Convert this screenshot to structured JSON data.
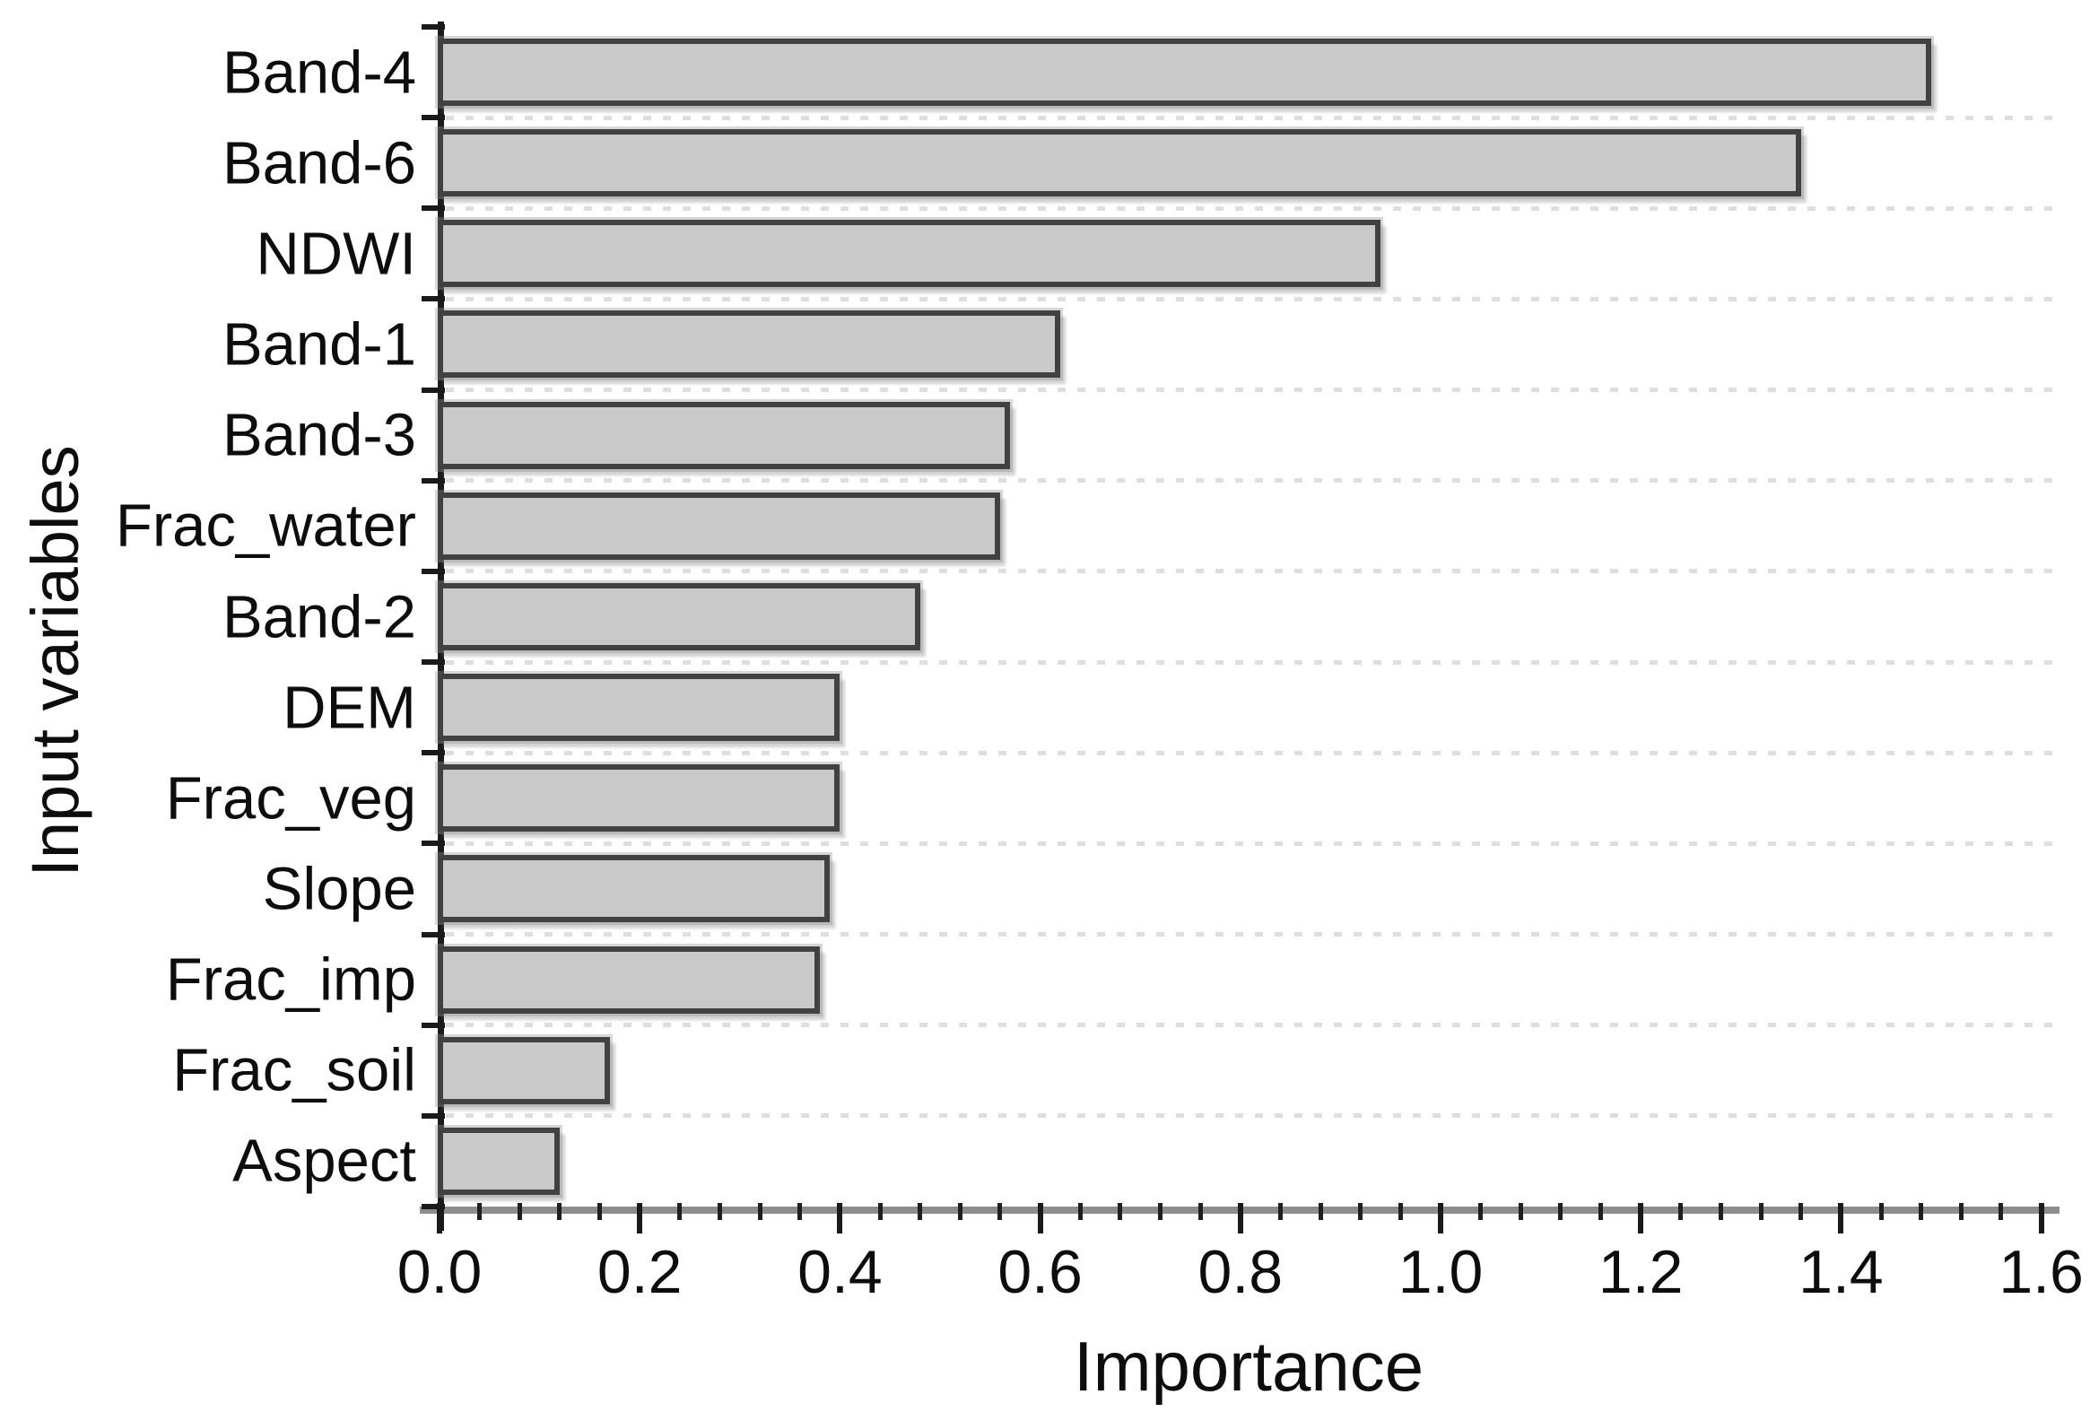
{
  "chart_data": {
    "type": "bar",
    "orientation": "horizontal",
    "title": "",
    "xlabel": "Importance",
    "ylabel": "Input variables",
    "categories": [
      "Band-4",
      "Band-6",
      "NDWI",
      "Band-1",
      "Band-3",
      "Frac_water",
      "Band-2",
      "DEM",
      "Frac_veg",
      "Slope",
      "Frac_imp",
      "Frac_soil",
      "Aspect"
    ],
    "values": [
      1.49,
      1.36,
      0.94,
      0.62,
      0.57,
      0.56,
      0.48,
      0.4,
      0.4,
      0.39,
      0.38,
      0.17,
      0.12
    ],
    "xlim": [
      0.0,
      1.6
    ],
    "xtick_labels": [
      "0.0",
      "0.2",
      "0.4",
      "0.6",
      "0.8",
      "1.0",
      "1.2",
      "1.4",
      "1.6"
    ],
    "xtick_values": [
      0.0,
      0.2,
      0.4,
      0.6,
      0.8,
      1.0,
      1.2,
      1.4,
      1.6
    ],
    "minor_tick_step": 0.04,
    "grid": "horizontal-dotted",
    "legend": "none",
    "bar_fill_color": "#c9c9c9",
    "bar_border_color": "#414141",
    "gridline_color": "#dedede",
    "axis_color": "#1c1c1c",
    "text_color": "#0d0d0d",
    "background_color": "#ffffff"
  }
}
